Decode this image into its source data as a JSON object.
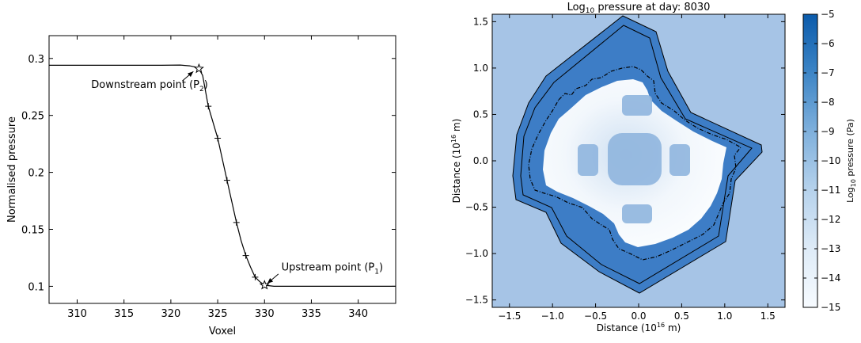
{
  "chart_data": [
    {
      "type": "line",
      "title": "",
      "xlabel": "Voxel",
      "ylabel": "Normalised pressure",
      "xlim": [
        307,
        344
      ],
      "ylim": [
        0.085,
        0.32
      ],
      "xticks": [
        310,
        315,
        320,
        325,
        330,
        335,
        340
      ],
      "yticks": [
        0.1,
        0.15,
        0.2,
        0.25,
        0.3
      ],
      "grid": false,
      "series": [
        {
          "x": [
            307,
            310,
            315,
            319,
            321,
            322,
            322.6,
            323,
            323.4,
            324,
            325,
            326,
            327,
            327.5,
            328,
            328.5,
            329,
            329.5,
            330,
            331,
            335,
            340,
            344
          ],
          "y": [
            0.294,
            0.294,
            0.294,
            0.294,
            0.2942,
            0.2935,
            0.2925,
            0.291,
            0.285,
            0.258,
            0.23,
            0.193,
            0.156,
            0.14,
            0.127,
            0.117,
            0.108,
            0.104,
            0.101,
            0.1,
            0.1,
            0.1,
            0.1
          ]
        }
      ],
      "cross_markers": {
        "x": [
          324,
          325,
          326,
          327,
          328,
          329
        ],
        "y": [
          0.258,
          0.23,
          0.193,
          0.156,
          0.127,
          0.108
        ]
      },
      "star_markers": {
        "x": [
          323,
          330
        ],
        "y": [
          0.291,
          0.101
        ]
      },
      "annotations": [
        {
          "text": "Downstream point (P",
          "sub": "2",
          "close": ")",
          "x": 322.4,
          "y": 0.2885,
          "text_x": 311.5,
          "text_y": 0.274
        },
        {
          "text": "Upstream point (P",
          "sub": "1",
          "close": ")",
          "x": 330.3,
          "y": 0.1025,
          "text_x": 331.8,
          "text_y": 0.114
        }
      ]
    },
    {
      "type": "heatmap",
      "title_pre": "Log",
      "title_sub": "10",
      "title_post": " pressure at day:  8030",
      "xlabel_pre": "Distance (10",
      "xlabel_sup": "16",
      "xlabel_post": "  m)",
      "ylabel_pre": "Distance (10",
      "ylabel_sup": "16",
      "ylabel_post": "  m)",
      "xlim": [
        -1.7,
        1.7
      ],
      "ylim": [
        -1.58,
        1.58
      ],
      "xticks": [
        "−1.5",
        "−1.0",
        "−0.5",
        "0.0",
        "0.5",
        "1.0",
        "1.5"
      ],
      "xtick_values": [
        -1.5,
        -1.0,
        -0.5,
        0.0,
        0.5,
        1.0,
        1.5
      ],
      "yticks": [
        "−1.5",
        "−1.0",
        "−0.5",
        "0.0",
        "0.5",
        "1.0",
        "1.5"
      ],
      "ytick_values": [
        -1.5,
        -1.0,
        -0.5,
        0.0,
        0.5,
        1.0,
        1.5
      ],
      "colorbar": {
        "min": -15,
        "max": -5,
        "ticks": [
          "−5",
          "−6",
          "−7",
          "−8",
          "−9",
          "−10",
          "−11",
          "−12",
          "−13",
          "−14",
          "−15"
        ],
        "tick_values": [
          -5,
          -6,
          -7,
          -8,
          -9,
          -10,
          -11,
          -12,
          -13,
          -14,
          -15
        ],
        "label_pre": "Log",
        "label_sub": "10",
        "label_post": " pressure (Pa)",
        "color_low": "#f7fbff",
        "color_high": "#08519c"
      },
      "background_color": "#a6c4e6",
      "shell_color": "#3f7fc8",
      "cavity_color": "#f5f9fd",
      "blob_color": "#87afdc"
    }
  ]
}
